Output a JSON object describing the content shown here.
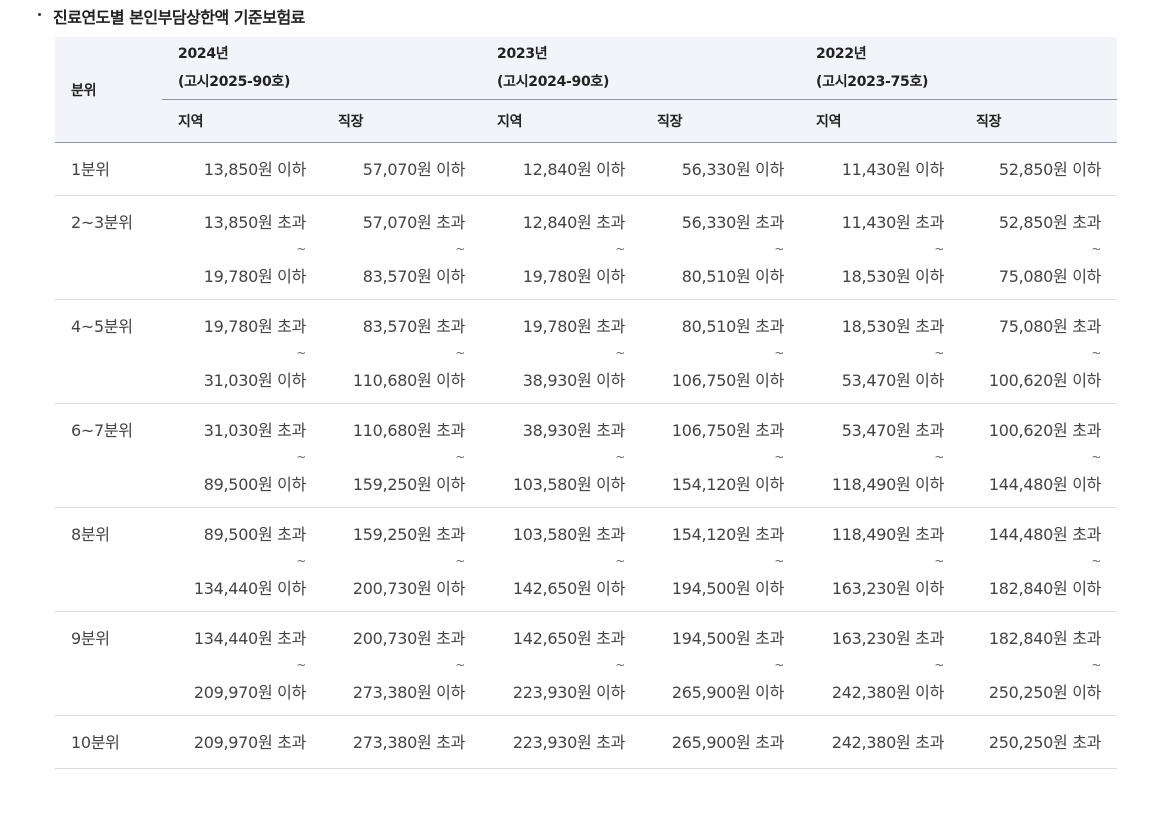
{
  "title": "진료연도별 본인부담상한액 기준보험료",
  "header": {
    "category_label": "분위",
    "years": [
      {
        "year": "2024년",
        "notice": "(고시2025-90호)"
      },
      {
        "year": "2023년",
        "notice": "(고시2024-90호)"
      },
      {
        "year": "2022년",
        "notice": "(고시2023-75호)"
      }
    ],
    "sub": [
      "지역",
      "직장",
      "지역",
      "직장",
      "지역",
      "직장"
    ]
  },
  "tilde": "~",
  "rows": [
    {
      "cat": "1분위",
      "cells": [
        {
          "lines": [
            "13,850원 이하"
          ]
        },
        {
          "lines": [
            "57,070원 이하"
          ]
        },
        {
          "lines": [
            "12,840원 이하"
          ]
        },
        {
          "lines": [
            "56,330원 이하"
          ]
        },
        {
          "lines": [
            "11,430원 이하"
          ]
        },
        {
          "lines": [
            "52,850원 이하"
          ]
        }
      ]
    },
    {
      "cat": "2~3분위",
      "cells": [
        {
          "lines": [
            "13,850원 초과",
            "19,780원 이하"
          ]
        },
        {
          "lines": [
            "57,070원 초과",
            "83,570원 이하"
          ]
        },
        {
          "lines": [
            "12,840원 초과",
            "19,780원 이하"
          ]
        },
        {
          "lines": [
            "56,330원 초과",
            "80,510원 이하"
          ]
        },
        {
          "lines": [
            "11,430원 초과",
            "18,530원 이하"
          ]
        },
        {
          "lines": [
            "52,850원 초과",
            "75,080원 이하"
          ]
        }
      ]
    },
    {
      "cat": "4~5분위",
      "cells": [
        {
          "lines": [
            "19,780원 초과",
            "31,030원 이하"
          ]
        },
        {
          "lines": [
            "83,570원 초과",
            "110,680원 이하"
          ]
        },
        {
          "lines": [
            "19,780원 초과",
            "38,930원 이하"
          ]
        },
        {
          "lines": [
            "80,510원 초과",
            "106,750원 이하"
          ]
        },
        {
          "lines": [
            "18,530원 초과",
            "53,470원 이하"
          ]
        },
        {
          "lines": [
            "75,080원 초과",
            "100,620원 이하"
          ]
        }
      ]
    },
    {
      "cat": "6~7분위",
      "cells": [
        {
          "lines": [
            "31,030원 초과",
            "89,500원 이하"
          ]
        },
        {
          "lines": [
            "110,680원 초과",
            "159,250원 이하"
          ]
        },
        {
          "lines": [
            "38,930원 초과",
            "103,580원 이하"
          ]
        },
        {
          "lines": [
            "106,750원 초과",
            "154,120원 이하"
          ]
        },
        {
          "lines": [
            "53,470원 초과",
            "118,490원 이하"
          ]
        },
        {
          "lines": [
            "100,620원 초과",
            "144,480원 이하"
          ]
        }
      ]
    },
    {
      "cat": "8분위",
      "cells": [
        {
          "lines": [
            "89,500원 초과",
            "134,440원 이하"
          ]
        },
        {
          "lines": [
            "159,250원 초과",
            "200,730원 이하"
          ]
        },
        {
          "lines": [
            "103,580원 초과",
            "142,650원 이하"
          ]
        },
        {
          "lines": [
            "154,120원 초과",
            "194,500원 이하"
          ]
        },
        {
          "lines": [
            "118,490원 초과",
            "163,230원 이하"
          ]
        },
        {
          "lines": [
            "144,480원 초과",
            "182,840원 이하"
          ]
        }
      ]
    },
    {
      "cat": "9분위",
      "cells": [
        {
          "lines": [
            "134,440원 초과",
            "209,970원 이하"
          ]
        },
        {
          "lines": [
            "200,730원 초과",
            "273,380원 이하"
          ]
        },
        {
          "lines": [
            "142,650원 초과",
            "223,930원 이하"
          ]
        },
        {
          "lines": [
            "194,500원 초과",
            "265,900원 이하"
          ]
        },
        {
          "lines": [
            "163,230원 초과",
            "242,380원 이하"
          ]
        },
        {
          "lines": [
            "182,840원 초과",
            "250,250원 이하"
          ]
        }
      ]
    },
    {
      "cat": "10분위",
      "cells": [
        {
          "lines": [
            "209,970원 초과"
          ]
        },
        {
          "lines": [
            "273,380원 초과"
          ]
        },
        {
          "lines": [
            "223,930원 초과"
          ]
        },
        {
          "lines": [
            "265,900원 초과"
          ]
        },
        {
          "lines": [
            "242,380원 초과"
          ]
        },
        {
          "lines": [
            "250,250원 초과"
          ]
        }
      ]
    }
  ]
}
